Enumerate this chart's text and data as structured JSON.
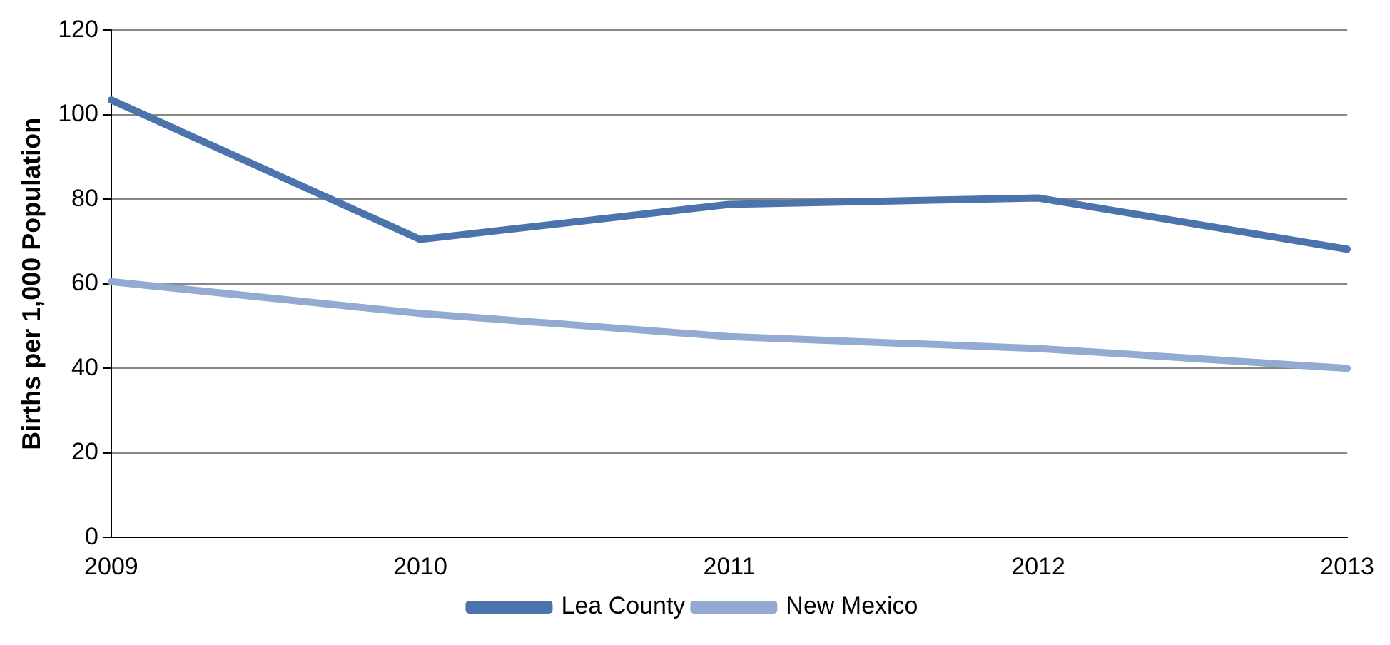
{
  "chart_data": {
    "type": "line",
    "ylabel": "Births per 1,000 Population",
    "categories": [
      "2009",
      "2010",
      "2011",
      "2012",
      "2013"
    ],
    "series": [
      {
        "name": "Lea County",
        "color": "#4a74ab",
        "values": [
          103.5,
          70.5,
          78.8,
          80.3,
          68.2
        ]
      },
      {
        "name": "New Mexico",
        "color": "#93aad3",
        "values": [
          60.5,
          53,
          47.5,
          44.7,
          40
        ]
      }
    ],
    "ylim": [
      0,
      120
    ],
    "yticks": [
      0,
      20,
      40,
      60,
      80,
      100,
      120
    ],
    "grid": "y",
    "legend": "bottom",
    "marker": "none",
    "line_style": "solid"
  }
}
